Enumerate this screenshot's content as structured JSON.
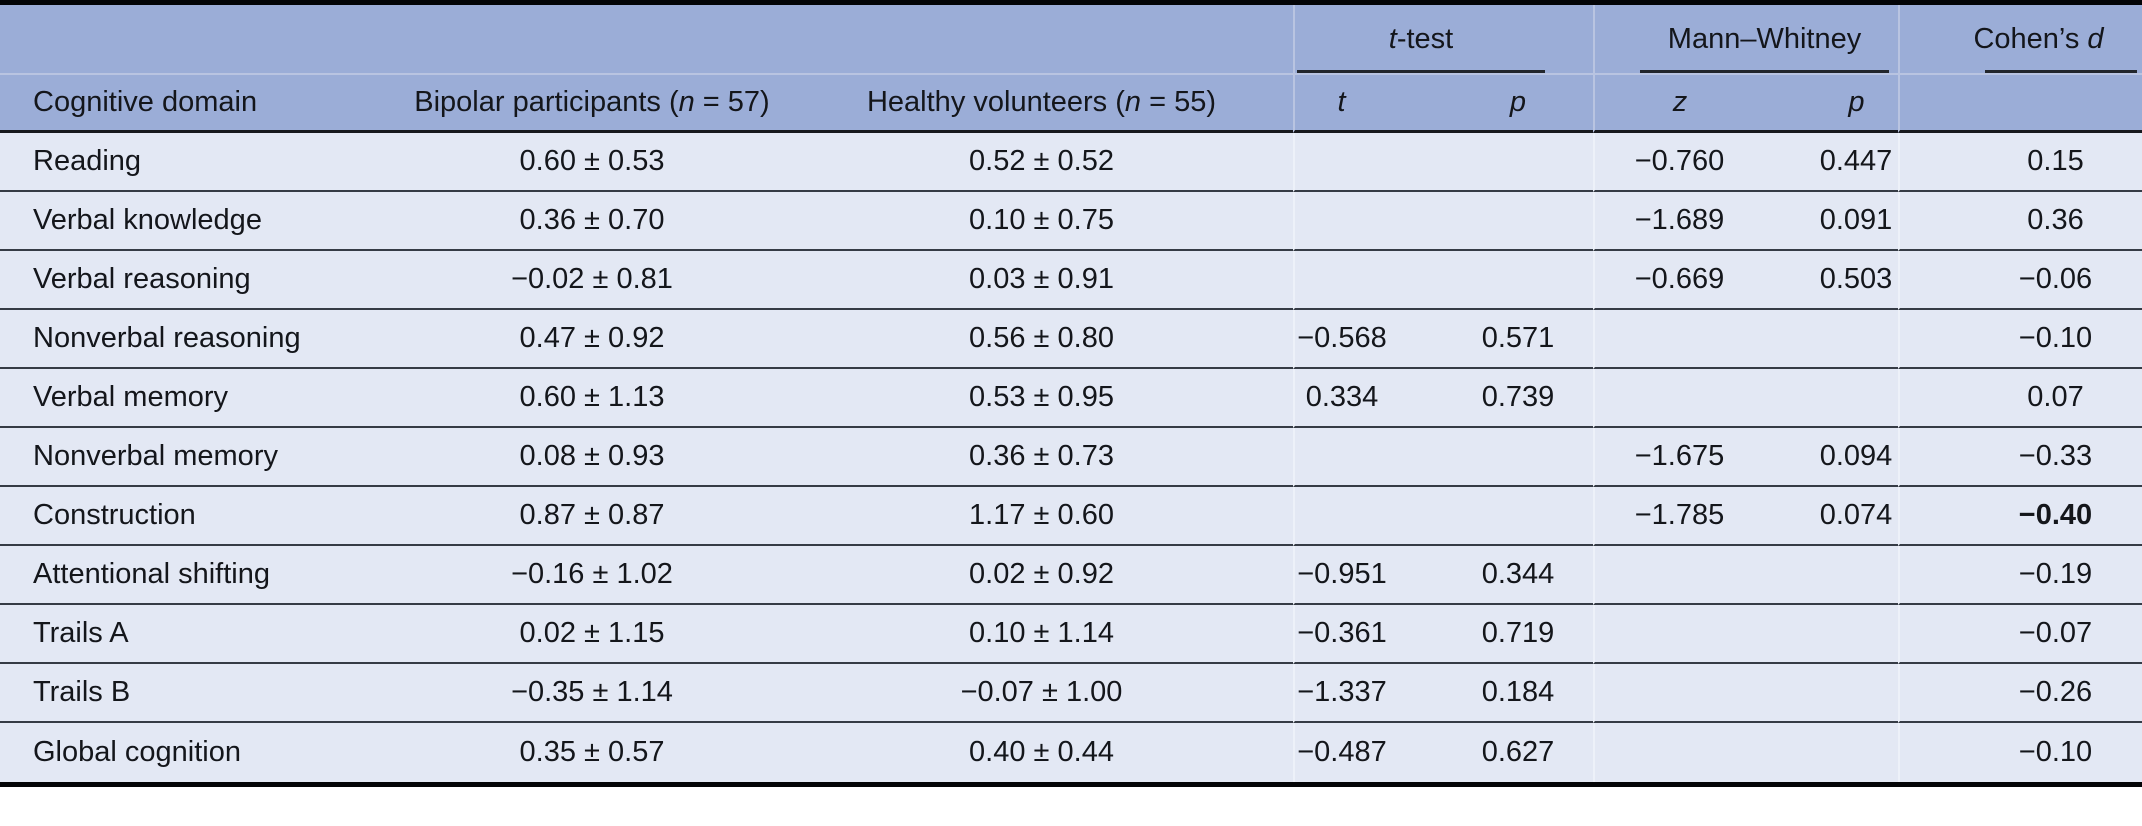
{
  "colors": {
    "header_background": "#9badd7",
    "body_row_background": "#e3e8f4",
    "rule_dark": "#353b45",
    "rule_light": "#b9c4e1",
    "border_black": "#030406"
  },
  "table": {
    "header": {
      "col_domain": "Cognitive domain",
      "col_bipolar": {
        "prefix": "Bipolar participants (",
        "italic": "n",
        "suffix": " = 57)"
      },
      "col_healthy": {
        "prefix": "Healthy volunteers (",
        "italic": "n",
        "suffix": " = 55)"
      },
      "group_ttest": {
        "italic": "t",
        "suffix": "-test"
      },
      "group_mann_whitney": "Mann–Whitney",
      "group_cohens_d": {
        "prefix": "Cohen’s ",
        "italic": "d"
      },
      "sub_t": "t",
      "sub_p1": "p",
      "sub_z": "z",
      "sub_p2": "p"
    },
    "rows": [
      {
        "domain": "Reading",
        "bipolar": "0.60 ± 0.53",
        "healthy": "0.52 ± 0.52",
        "t": "",
        "p_t": "",
        "z": "−0.760",
        "p_z": "0.447",
        "d": "0.15",
        "d_bold": false
      },
      {
        "domain": "Verbal knowledge",
        "bipolar": "0.36 ± 0.70",
        "healthy": "0.10 ± 0.75",
        "t": "",
        "p_t": "",
        "z": "−1.689",
        "p_z": "0.091",
        "d": "0.36",
        "d_bold": false
      },
      {
        "domain": "Verbal reasoning",
        "bipolar": "−0.02 ± 0.81",
        "healthy": "0.03 ± 0.91",
        "t": "",
        "p_t": "",
        "z": "−0.669",
        "p_z": "0.503",
        "d": "−0.06",
        "d_bold": false
      },
      {
        "domain": "Nonverbal reasoning",
        "bipolar": "0.47 ± 0.92",
        "healthy": "0.56 ± 0.80",
        "t": "−0.568",
        "p_t": "0.571",
        "z": "",
        "p_z": "",
        "d": "−0.10",
        "d_bold": false
      },
      {
        "domain": "Verbal memory",
        "bipolar": "0.60 ± 1.13",
        "healthy": "0.53 ± 0.95",
        "t": "0.334",
        "p_t": "0.739",
        "z": "",
        "p_z": "",
        "d": "0.07",
        "d_bold": false
      },
      {
        "domain": "Nonverbal memory",
        "bipolar": "0.08 ± 0.93",
        "healthy": "0.36 ± 0.73",
        "t": "",
        "p_t": "",
        "z": "−1.675",
        "p_z": "0.094",
        "d": "−0.33",
        "d_bold": false
      },
      {
        "domain": "Construction",
        "bipolar": "0.87 ± 0.87",
        "healthy": "1.17 ± 0.60",
        "t": "",
        "p_t": "",
        "z": "−1.785",
        "p_z": "0.074",
        "d": "−0.40",
        "d_bold": true
      },
      {
        "domain": "Attentional shifting",
        "bipolar": "−0.16 ± 1.02",
        "healthy": "0.02 ± 0.92",
        "t": "−0.951",
        "p_t": "0.344",
        "z": "",
        "p_z": "",
        "d": "−0.19",
        "d_bold": false
      },
      {
        "domain": "Trails A",
        "bipolar": "0.02 ± 1.15",
        "healthy": "0.10 ± 1.14",
        "t": "−0.361",
        "p_t": "0.719",
        "z": "",
        "p_z": "",
        "d": "−0.07",
        "d_bold": false
      },
      {
        "domain": "Trails B",
        "bipolar": "−0.35 ± 1.14",
        "healthy": "−0.07 ± 1.00",
        "t": "−1.337",
        "p_t": "0.184",
        "z": "",
        "p_z": "",
        "d": "−0.26",
        "d_bold": false
      },
      {
        "domain": "Global cognition",
        "bipolar": "0.35 ± 0.57",
        "healthy": "0.40 ± 0.44",
        "t": "−0.487",
        "p_t": "0.627",
        "z": "",
        "p_z": "",
        "d": "−0.10",
        "d_bold": false
      }
    ]
  }
}
